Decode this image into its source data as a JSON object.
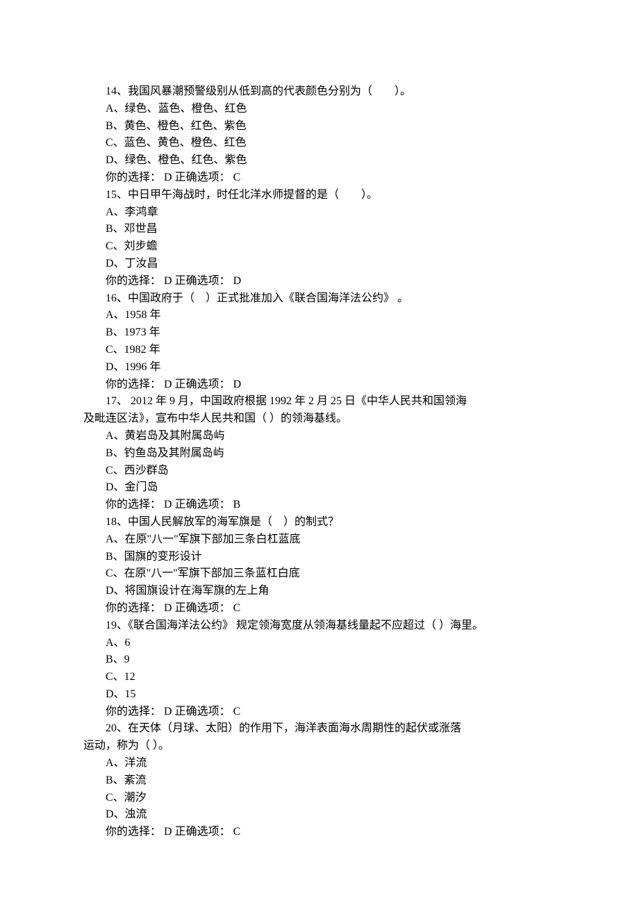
{
  "questions": [
    {
      "number": "14",
      "text": "、我国风暴潮预警级别从低到高的代表颜色分别为（　　）。",
      "options": {
        "A": "A、绿色、蓝色、橙色、红色",
        "B": "B、黄色、橙色、红色、紫色",
        "C": "C、蓝色、黄色、橙色、红色",
        "D": "D、绿色、橙色、红色、紫色"
      },
      "your_choice": "D",
      "correct": "C"
    },
    {
      "number": "15",
      "text": "、中日甲午海战时，时任北洋水师提督的是（　　）。",
      "options": {
        "A": "A、李鸿章",
        "B": "B、邓世昌",
        "C": "C、刘步蟾",
        "D": "D、丁汝昌"
      },
      "your_choice": "D",
      "correct": "D"
    },
    {
      "number": "16",
      "text": "、中国政府于（　）正式批准加入《联合国海洋法公约》 。",
      "options": {
        "A": "A、1958 年",
        "B": "B、1973 年",
        "C": "C、1982 年",
        "D": "D、1996 年"
      },
      "your_choice": "D",
      "correct": "D"
    },
    {
      "number": "17",
      "text_line1": "、 2012 年 9 月，中国政府根据 1992 年 2 月 25 日《中华人民共和国领海",
      "text_line2": "及毗连区法》，宣布中华人民共和国（  ）的领海基线。",
      "options": {
        "A": "A、黄岩岛及其附属岛屿",
        "B": "B、钓鱼岛及其附属岛屿",
        "C": "C、西沙群岛",
        "D": "D、金门岛"
      },
      "your_choice": "D",
      "correct": "B"
    },
    {
      "number": "18",
      "text": "、中国人民解放军的海军旗是（　）的制式？",
      "options": {
        "A": "A、在原\"八一\"军旗下部加三条白杠蓝底",
        "B": "B、国旗的变形设计",
        "C": "C、在原\"八一\"军旗下部加三条蓝杠白底",
        "D": "D、将国旗设计在海军旗的左上角"
      },
      "your_choice": "D",
      "correct": "C"
    },
    {
      "number": "19",
      "text": "、《联合国海洋法公约》 规定领海宽度从领海基线量起不应超过（  ）海里。",
      "options": {
        "A": "A、6",
        "B": "B、9",
        "C": "C、12",
        "D": "D、15"
      },
      "your_choice": "D",
      "correct": "C"
    },
    {
      "number": "20",
      "text_line1": "、在天体（月球、太阳）的作用下，海洋表面海水周期性的起伏或涨落",
      "text_line2": "运动，称为（  ）。",
      "options": {
        "A": "A、洋流",
        "B": "B、紊流",
        "C": "C、潮汐",
        "D": "D、浊流"
      },
      "your_choice": "D",
      "correct": "C"
    }
  ],
  "labels": {
    "your_choice_prefix": "你的选择： ",
    "correct_prefix": " 正确选项： "
  }
}
